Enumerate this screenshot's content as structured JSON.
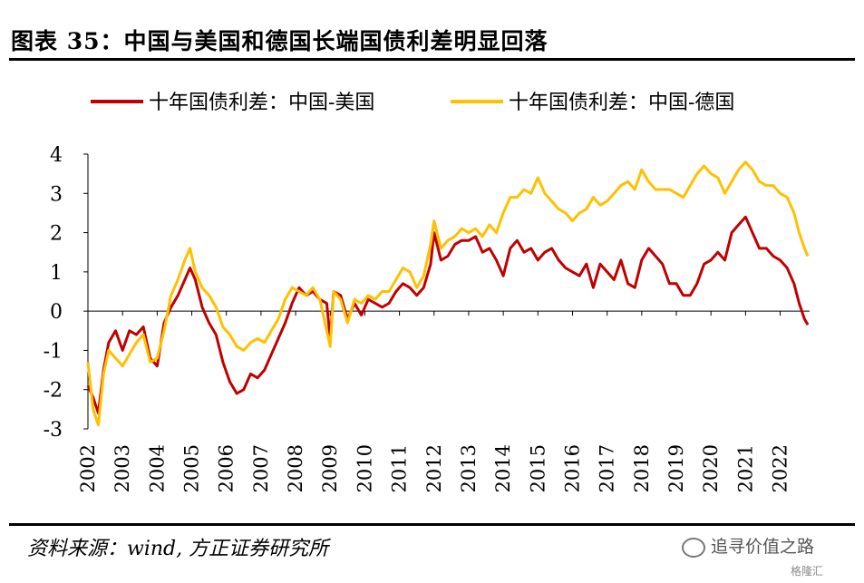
{
  "header": {
    "title": "图表 35：中国与美国和德国长端国债利差明显回落"
  },
  "footer": {
    "source": "资料来源：wind, 方正证券研究所"
  },
  "watermark": {
    "text": "追寻价值之路",
    "sub": "格隆汇"
  },
  "chart_data": {
    "type": "line",
    "title": "",
    "xlabel": "",
    "ylabel": "",
    "ylim": [
      -3,
      4
    ],
    "yticks": [
      -3,
      -2,
      -1,
      0,
      1,
      2,
      3,
      4
    ],
    "xlim": [
      2002.0,
      2022.85
    ],
    "xticks": [
      "2002",
      "2003",
      "2004",
      "2005",
      "2006",
      "2007",
      "2008",
      "2009",
      "2010",
      "2011",
      "2012",
      "2013",
      "2014",
      "2015",
      "2016",
      "2017",
      "2018",
      "2019",
      "2020",
      "2021",
      "2022"
    ],
    "grid": false,
    "legend_position": "top",
    "series": [
      {
        "name": "十年国债利差：中国-美国",
        "color": "#C00000",
        "x": [
          2002.0,
          2002.15,
          2002.3,
          2002.45,
          2002.6,
          2002.8,
          2003.0,
          2003.2,
          2003.4,
          2003.6,
          2003.8,
          2004.0,
          2004.2,
          2004.4,
          2004.6,
          2004.8,
          2004.95,
          2005.1,
          2005.3,
          2005.5,
          2005.7,
          2005.9,
          2006.1,
          2006.3,
          2006.5,
          2006.7,
          2006.9,
          2007.1,
          2007.3,
          2007.5,
          2007.7,
          2007.9,
          2008.1,
          2008.3,
          2008.5,
          2008.7,
          2008.9,
          2009.0,
          2009.1,
          2009.3,
          2009.5,
          2009.7,
          2009.9,
          2010.1,
          2010.3,
          2010.5,
          2010.7,
          2010.9,
          2011.1,
          2011.3,
          2011.5,
          2011.7,
          2011.9,
          2012.0,
          2012.2,
          2012.4,
          2012.6,
          2012.8,
          2013.0,
          2013.2,
          2013.4,
          2013.6,
          2013.8,
          2014.0,
          2014.2,
          2014.4,
          2014.6,
          2014.8,
          2015.0,
          2015.2,
          2015.4,
          2015.6,
          2015.8,
          2016.0,
          2016.2,
          2016.4,
          2016.6,
          2016.8,
          2017.0,
          2017.2,
          2017.4,
          2017.6,
          2017.8,
          2018.0,
          2018.2,
          2018.4,
          2018.6,
          2018.8,
          2019.0,
          2019.2,
          2019.4,
          2019.6,
          2019.8,
          2020.0,
          2020.2,
          2020.4,
          2020.6,
          2020.8,
          2021.0,
          2021.2,
          2021.4,
          2021.6,
          2021.8,
          2022.0,
          2022.2,
          2022.4,
          2022.55,
          2022.7,
          2022.8
        ],
        "values": [
          -1.9,
          -2.2,
          -2.6,
          -1.5,
          -0.8,
          -0.5,
          -1.0,
          -0.5,
          -0.6,
          -0.4,
          -1.2,
          -1.4,
          -0.3,
          0.1,
          0.4,
          0.8,
          1.1,
          0.8,
          0.1,
          -0.3,
          -0.6,
          -1.3,
          -1.8,
          -2.1,
          -2.0,
          -1.6,
          -1.7,
          -1.5,
          -1.1,
          -0.7,
          -0.3,
          0.2,
          0.6,
          0.4,
          0.5,
          0.3,
          0.2,
          -0.7,
          0.5,
          0.4,
          -0.2,
          0.2,
          -0.1,
          0.3,
          0.2,
          0.1,
          0.2,
          0.5,
          0.7,
          0.6,
          0.4,
          0.6,
          1.2,
          2.0,
          1.3,
          1.4,
          1.7,
          1.8,
          1.8,
          1.9,
          1.5,
          1.6,
          1.3,
          0.9,
          1.6,
          1.8,
          1.5,
          1.6,
          1.3,
          1.5,
          1.6,
          1.3,
          1.1,
          1.0,
          0.9,
          1.2,
          0.6,
          1.2,
          1.0,
          0.8,
          1.3,
          0.7,
          0.6,
          1.3,
          1.6,
          1.4,
          1.2,
          0.7,
          0.7,
          0.4,
          0.4,
          0.7,
          1.2,
          1.3,
          1.5,
          1.3,
          2.0,
          2.2,
          2.4,
          2.0,
          1.6,
          1.6,
          1.4,
          1.3,
          1.1,
          0.7,
          0.2,
          -0.2,
          -0.35
        ]
      },
      {
        "name": "十年国债利差：中国-德国",
        "color": "#FFC000",
        "x": [
          2002.0,
          2002.15,
          2002.3,
          2002.45,
          2002.6,
          2002.8,
          2003.0,
          2003.2,
          2003.4,
          2003.6,
          2003.8,
          2004.0,
          2004.2,
          2004.4,
          2004.6,
          2004.8,
          2004.95,
          2005.1,
          2005.3,
          2005.5,
          2005.7,
          2005.9,
          2006.1,
          2006.3,
          2006.5,
          2006.7,
          2006.9,
          2007.1,
          2007.3,
          2007.5,
          2007.7,
          2007.9,
          2008.1,
          2008.3,
          2008.5,
          2008.7,
          2008.9,
          2009.0,
          2009.1,
          2009.3,
          2009.5,
          2009.7,
          2009.9,
          2010.1,
          2010.3,
          2010.5,
          2010.7,
          2010.9,
          2011.1,
          2011.3,
          2011.5,
          2011.7,
          2011.9,
          2012.0,
          2012.2,
          2012.4,
          2012.6,
          2012.8,
          2013.0,
          2013.2,
          2013.4,
          2013.6,
          2013.8,
          2014.0,
          2014.2,
          2014.4,
          2014.6,
          2014.8,
          2015.0,
          2015.2,
          2015.4,
          2015.6,
          2015.8,
          2016.0,
          2016.2,
          2016.4,
          2016.6,
          2016.8,
          2017.0,
          2017.2,
          2017.4,
          2017.6,
          2017.8,
          2018.0,
          2018.2,
          2018.4,
          2018.6,
          2018.8,
          2019.0,
          2019.2,
          2019.4,
          2019.6,
          2019.8,
          2020.0,
          2020.2,
          2020.4,
          2020.6,
          2020.8,
          2021.0,
          2021.2,
          2021.4,
          2021.6,
          2021.8,
          2022.0,
          2022.2,
          2022.4,
          2022.55,
          2022.7,
          2022.8
        ],
        "values": [
          -1.3,
          -2.5,
          -2.9,
          -1.6,
          -1.0,
          -1.2,
          -1.4,
          -1.1,
          -0.8,
          -0.6,
          -1.3,
          -1.2,
          -0.5,
          0.4,
          0.8,
          1.3,
          1.6,
          1.0,
          0.6,
          0.4,
          0.1,
          -0.4,
          -0.6,
          -0.9,
          -1.0,
          -0.8,
          -0.7,
          -0.8,
          -0.5,
          -0.2,
          0.3,
          0.6,
          0.5,
          0.4,
          0.6,
          0.3,
          -0.5,
          -0.9,
          0.5,
          0.3,
          -0.3,
          0.3,
          0.2,
          0.4,
          0.3,
          0.5,
          0.5,
          0.8,
          1.1,
          1.0,
          0.6,
          0.9,
          1.7,
          2.3,
          1.6,
          1.8,
          1.9,
          2.1,
          2.0,
          2.1,
          1.9,
          2.2,
          2.0,
          2.5,
          2.9,
          2.9,
          3.1,
          3.0,
          3.4,
          3.0,
          2.8,
          2.6,
          2.5,
          2.3,
          2.5,
          2.6,
          2.9,
          2.7,
          2.8,
          3.0,
          3.2,
          3.3,
          3.1,
          3.6,
          3.3,
          3.1,
          3.1,
          3.1,
          3.0,
          2.9,
          3.2,
          3.5,
          3.7,
          3.5,
          3.4,
          3.0,
          3.3,
          3.6,
          3.8,
          3.6,
          3.3,
          3.2,
          3.2,
          3.0,
          2.9,
          2.5,
          2.0,
          1.6,
          1.4
        ]
      }
    ]
  }
}
